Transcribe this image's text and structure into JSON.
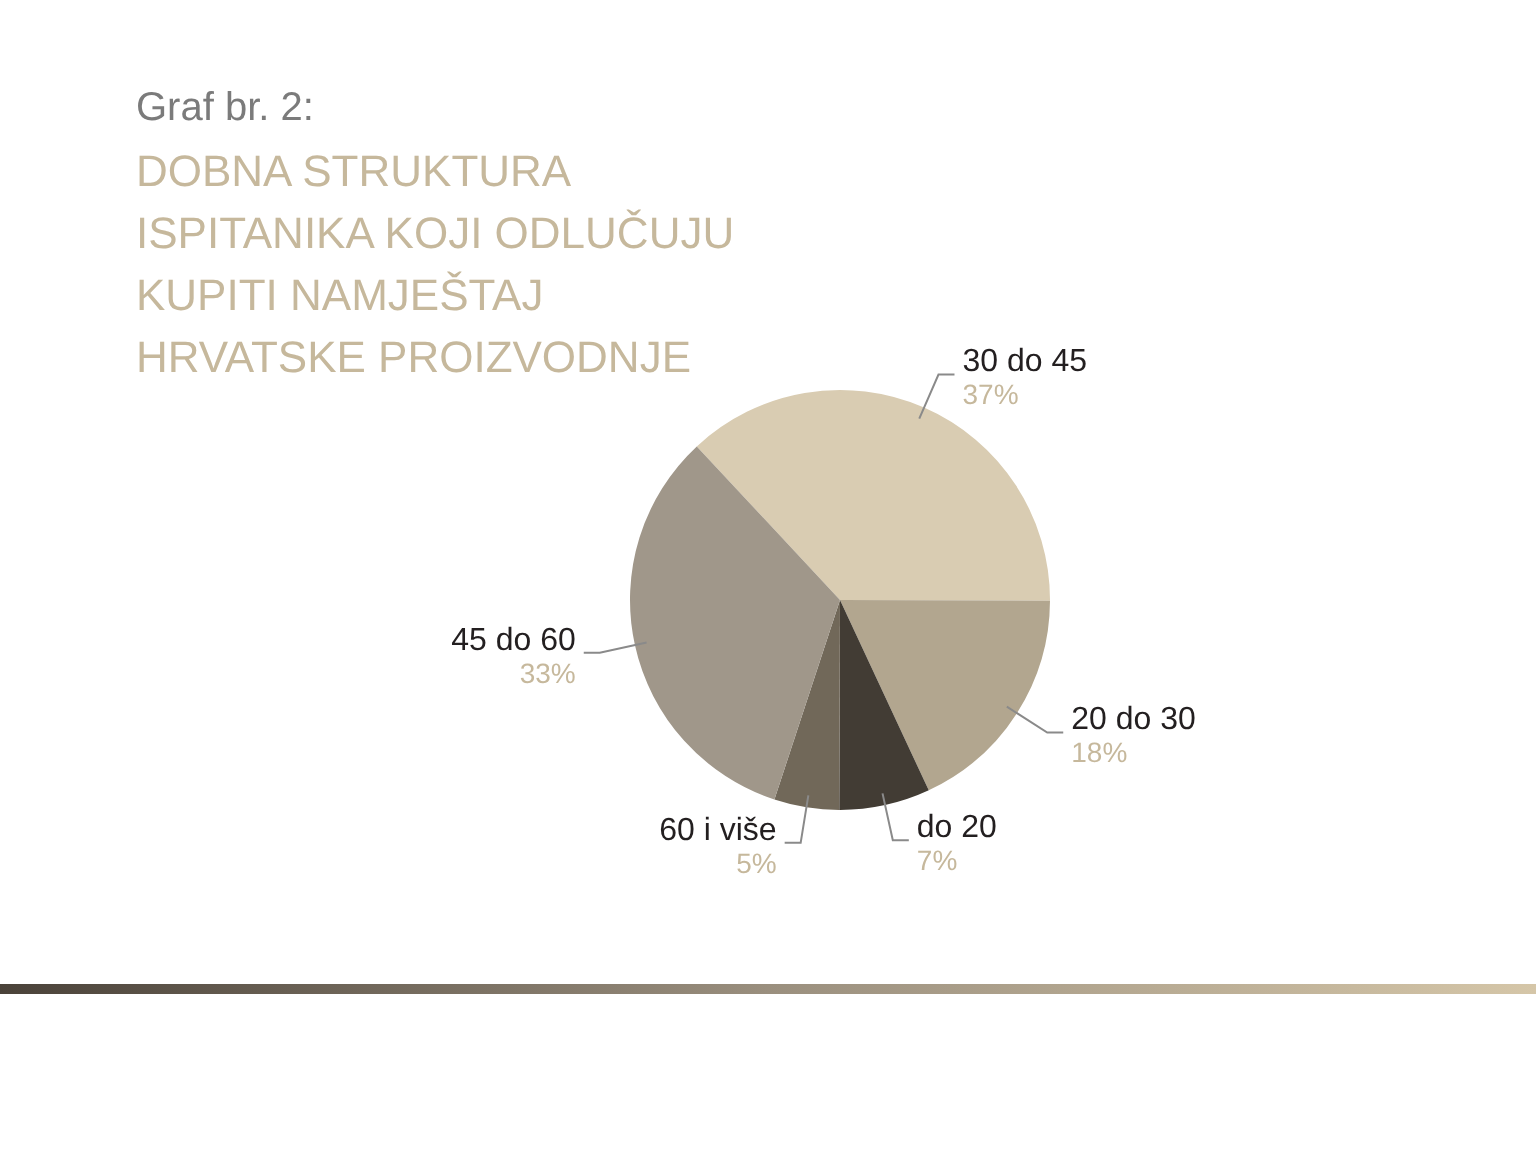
{
  "chart_data": {
    "type": "pie",
    "title": "DOBNA STRUKTURA ISPITANIKA KOJI ODLUČUJU KUPITI NAMJEŠTAJ HRVATSKE PROIZVODNJE",
    "annotations": [
      "Graf br. 2:"
    ],
    "categories": [
      "30 do 45",
      "20 do 30",
      "do 20",
      "60 i više",
      "45 do 60"
    ],
    "values": [
      37,
      18,
      7,
      5,
      33
    ],
    "value_labels": [
      "37%",
      "18%",
      "7%",
      "5%",
      "33%"
    ],
    "colors": [
      "#d9ccb2",
      "#b2a68f",
      "#423c34",
      "#716859",
      "#a0978a"
    ],
    "legend": false
  }
}
